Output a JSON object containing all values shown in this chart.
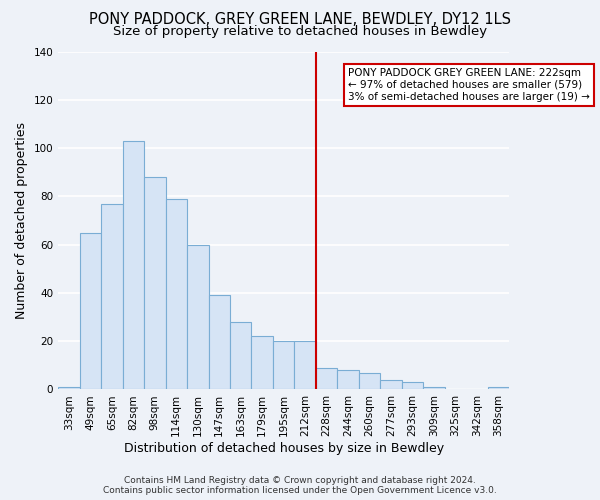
{
  "title1": "PONY PADDOCK, GREY GREEN LANE, BEWDLEY, DY12 1LS",
  "title2": "Size of property relative to detached houses in Bewdley",
  "xlabel": "Distribution of detached houses by size in Bewdley",
  "ylabel": "Number of detached properties",
  "footnote1": "Contains HM Land Registry data © Crown copyright and database right 2024.",
  "footnote2": "Contains public sector information licensed under the Open Government Licence v3.0.",
  "annotation_title": "PONY PADDOCK GREY GREEN LANE: 222sqm",
  "annotation_line1": "← 97% of detached houses are smaller (579)",
  "annotation_line2": "3% of semi-detached houses are larger (19) →",
  "bar_labels": [
    "33sqm",
    "49sqm",
    "65sqm",
    "82sqm",
    "98sqm",
    "114sqm",
    "130sqm",
    "147sqm",
    "163sqm",
    "179sqm",
    "195sqm",
    "212sqm",
    "228sqm",
    "244sqm",
    "260sqm",
    "277sqm",
    "293sqm",
    "309sqm",
    "325sqm",
    "342sqm",
    "358sqm"
  ],
  "bar_values": [
    1,
    65,
    77,
    103,
    88,
    79,
    60,
    39,
    28,
    22,
    20,
    20,
    9,
    8,
    7,
    4,
    3,
    1,
    0,
    0,
    1
  ],
  "bar_color": "#d6e4f5",
  "bar_edge_color": "#7aadd4",
  "vline_x": 12.0,
  "vline_color": "#cc0000",
  "ylim": [
    0,
    140
  ],
  "yticks": [
    0,
    20,
    40,
    60,
    80,
    100,
    120,
    140
  ],
  "background_color": "#eef2f8",
  "grid_color": "#ffffff",
  "annotation_box_color": "#ffffff",
  "annotation_border_color": "#cc0000",
  "title_fontsize": 10.5,
  "subtitle_fontsize": 9.5,
  "axis_label_fontsize": 9,
  "tick_fontsize": 7.5,
  "annotation_fontsize": 7.5,
  "footnote_fontsize": 6.5
}
